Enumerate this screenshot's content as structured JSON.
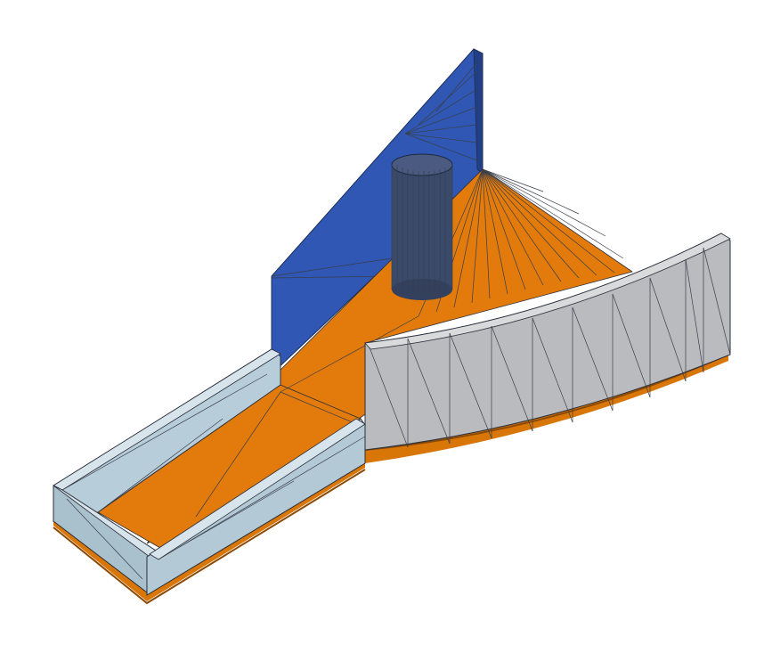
{
  "view": {
    "projection": "isometric",
    "rendering": "shaded-with-mesh-edges"
  },
  "model": {
    "parts": [
      {
        "name": "floor",
        "color": "#e27a0c"
      },
      {
        "name": "base-edge",
        "color": "#b45c08"
      },
      {
        "name": "back-wall",
        "color": "#2f57b3"
      },
      {
        "name": "cylinder",
        "color": "#3a4a6b"
      },
      {
        "name": "curved-wall",
        "color": "#b9bbbe"
      },
      {
        "name": "channel-walls",
        "color": "#b7cdd9"
      }
    ]
  }
}
